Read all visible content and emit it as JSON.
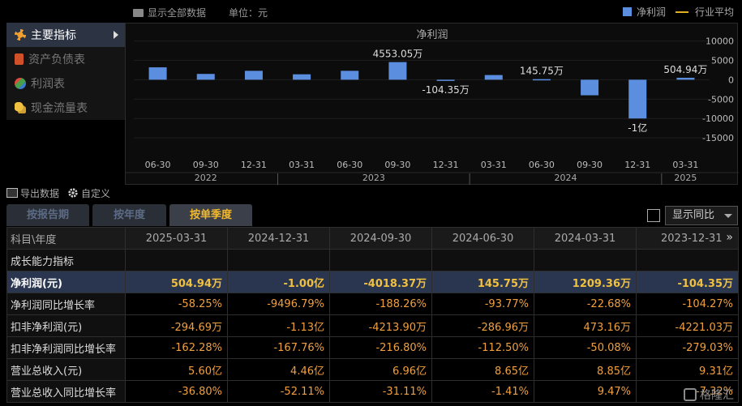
{
  "toolbar": {
    "show_all": "显示全部数据",
    "unit": "单位：元",
    "legend_net_profit": "净利润",
    "legend_industry_avg": "行业平均"
  },
  "sidebar": {
    "items": [
      {
        "label": "主要指标",
        "icon": "asterisk-icon",
        "active": true
      },
      {
        "label": "资产负债表",
        "icon": "document-icon",
        "active": false
      },
      {
        "label": "利润表",
        "icon": "cube-icon",
        "active": false
      },
      {
        "label": "现金流量表",
        "icon": "coins-icon",
        "active": false
      }
    ]
  },
  "chart_data": {
    "type": "bar",
    "title": "净利润",
    "categories": [
      "06-30",
      "09-30",
      "12-31",
      "03-31",
      "06-30",
      "09-30",
      "12-31",
      "03-31",
      "06-30",
      "09-30",
      "12-31",
      "03-31"
    ],
    "year_groups": [
      {
        "label": "2022",
        "count": 3
      },
      {
        "label": "2023",
        "count": 4
      },
      {
        "label": "2024",
        "count": 4
      },
      {
        "label": "2025",
        "count": 1
      }
    ],
    "series": [
      {
        "name": "净利润",
        "values": [
          3200,
          1500,
          2300,
          1400,
          2300,
          4553.05,
          -104.35,
          1209.36,
          145.75,
          -4018.37,
          -10000,
          504.94
        ]
      }
    ],
    "data_labels": [
      {
        "index": 5,
        "text": "4553.05万"
      },
      {
        "index": 6,
        "text": "-104.35万"
      },
      {
        "index": 8,
        "text": "145.75万"
      },
      {
        "index": 10,
        "text": "-1亿"
      },
      {
        "index": 11,
        "text": "504.94万"
      }
    ],
    "y_ticks": [
      10000,
      5000,
      0,
      -5000,
      -10000,
      -15000
    ],
    "ylim": [
      -20000,
      12000
    ],
    "colors": {
      "bar": "#5c8ee0",
      "industry_avg": "#e0b020"
    }
  },
  "tools": {
    "export": "导出数据",
    "customize": "自定义"
  },
  "tabs": [
    {
      "label": "按报告期",
      "active": false
    },
    {
      "label": "按年度",
      "active": false
    },
    {
      "label": "按单季度",
      "active": true
    }
  ],
  "yoy": {
    "label": "显示同比"
  },
  "table": {
    "header_first": "科目\\年度",
    "columns": [
      "2025-03-31",
      "2024-12-31",
      "2024-09-30",
      "2024-06-30",
      "2024-03-31",
      "2023-12-31"
    ],
    "more": "»",
    "section": "成长能力指标",
    "rows": [
      {
        "label": "净利润(元)",
        "values": [
          "504.94万",
          "-1.00亿",
          "-4018.37万",
          "145.75万",
          "1209.36万",
          "-104.35万"
        ],
        "highlight": true
      },
      {
        "label": "净利润同比增长率",
        "values": [
          "-58.25%",
          "-9496.79%",
          "-188.26%",
          "-93.77%",
          "-22.68%",
          "-104.27%"
        ]
      },
      {
        "label": "扣非净利润(元)",
        "values": [
          "-294.69万",
          "-1.13亿",
          "-4213.90万",
          "-286.96万",
          "473.16万",
          "-4221.03万"
        ]
      },
      {
        "label": "扣非净利润同比增长率",
        "values": [
          "-162.28%",
          "-167.76%",
          "-216.80%",
          "-112.50%",
          "-50.08%",
          "-279.03%"
        ]
      },
      {
        "label": "营业总收入(元)",
        "values": [
          "5.60亿",
          "4.46亿",
          "6.96亿",
          "8.65亿",
          "8.85亿",
          "9.31亿"
        ]
      },
      {
        "label": "营业总收入同比增长率",
        "values": [
          "-36.80%",
          "-52.11%",
          "-31.11%",
          "-1.41%",
          "9.47%",
          "-7.32%"
        ]
      }
    ]
  },
  "watermark": "格隆汇"
}
